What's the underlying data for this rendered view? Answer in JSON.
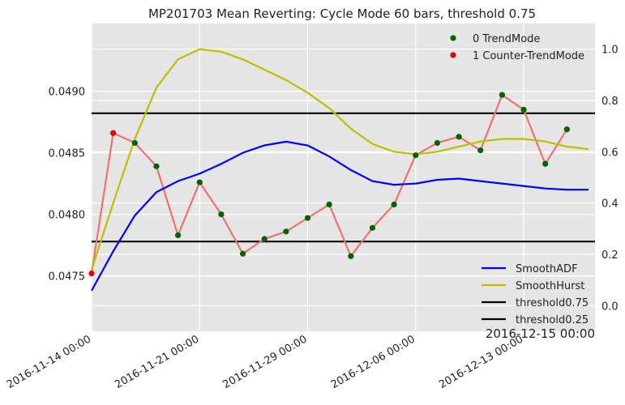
{
  "chart_data": {
    "type": "line",
    "title": "MP201703 Mean Reverting: Cycle Mode 60 bars, threshold 0.75",
    "corner_label": "2016-12-15 00:00",
    "x_ticks": [
      "2016-11-14 00:00",
      "2016-11-21 00:00",
      "2016-11-29 00:00",
      "2016-12-06 00:00",
      "2016-12-13 00:00"
    ],
    "x_tick_index": [
      0,
      5,
      10,
      15,
      20
    ],
    "y_left": {
      "ticks": [
        "0.0475",
        "0.0480",
        "0.0485",
        "0.0490"
      ],
      "tick_values": [
        0.0475,
        0.048,
        0.0485,
        0.049
      ],
      "range": [
        0.04705,
        0.04955
      ]
    },
    "y_right": {
      "ticks": [
        "0.0",
        "0.2",
        "0.4",
        "0.6",
        "0.8",
        "1.0"
      ],
      "tick_values": [
        0.0,
        0.2,
        0.4,
        0.6,
        0.8,
        1.0
      ],
      "range": [
        -0.1,
        1.1
      ]
    },
    "x_range": [
      0,
      23.3
    ],
    "price_series": {
      "color": "#f07070",
      "x": [
        0,
        1,
        2,
        3,
        4,
        5,
        6,
        7,
        8,
        9,
        10,
        11,
        12,
        13,
        14,
        15,
        16,
        17,
        18,
        19,
        20,
        21,
        22,
        23
      ],
      "values": [
        0.04752,
        0.04866,
        0.04858,
        0.04839,
        0.04783,
        0.04826,
        0.048,
        0.04768,
        0.0478,
        0.04786,
        0.04797,
        0.04808,
        0.04766,
        0.04789,
        0.04808,
        0.04848,
        0.04858,
        0.04863,
        0.04852,
        0.04897,
        0.04885,
        0.04841,
        0.04869,
        null
      ]
    },
    "scatter_series": [
      {
        "name": "0 TrendMode",
        "color": "#006400",
        "indices": [
          2,
          3,
          4,
          5,
          6,
          7,
          8,
          9,
          10,
          11,
          12,
          13,
          14,
          15,
          16,
          17,
          18,
          19,
          20,
          21,
          22
        ]
      },
      {
        "name": "1 Counter-TrendMode",
        "color": "#e60000",
        "indices": [
          0,
          1
        ]
      }
    ],
    "line_series": [
      {
        "name": "SmoothADF",
        "color": "#0000ff",
        "x": [
          0,
          1,
          2,
          3,
          4,
          5,
          6,
          7,
          8,
          9,
          10,
          11,
          12,
          13,
          14,
          15,
          16,
          17,
          18,
          19,
          20,
          21,
          22,
          23
        ],
        "values": [
          0.04738,
          0.0477,
          0.04799,
          0.04818,
          0.04827,
          0.04833,
          0.04841,
          0.0485,
          0.04856,
          0.04859,
          0.04856,
          0.04847,
          0.04836,
          0.04827,
          0.04824,
          0.04825,
          0.04828,
          0.04829,
          0.04827,
          0.04825,
          0.04823,
          0.04821,
          0.0482,
          0.0482
        ]
      },
      {
        "name": "SmoothHurst",
        "color": "#bfbf00",
        "axis": "right",
        "x": [
          0,
          1,
          2,
          3,
          4,
          5,
          6,
          7,
          8,
          9,
          10,
          11,
          12,
          13,
          14,
          15,
          16,
          17,
          18,
          19,
          20,
          21,
          22,
          23
        ],
        "values": [
          0.14,
          0.4,
          0.65,
          0.85,
          0.96,
          1.0,
          0.99,
          0.96,
          0.92,
          0.88,
          0.83,
          0.77,
          0.69,
          0.63,
          0.6,
          0.59,
          0.6,
          0.62,
          0.64,
          0.65,
          0.65,
          0.64,
          0.62,
          0.61
        ]
      },
      {
        "name": "threshold0.75",
        "color": "#000000",
        "axis": "right",
        "constant": 0.75
      },
      {
        "name": "threshold0.25",
        "color": "#000000",
        "axis": "right",
        "constant": 0.25
      }
    ],
    "grid": true,
    "legend_top": "top-right",
    "legend_bottom": "bottom-right"
  }
}
